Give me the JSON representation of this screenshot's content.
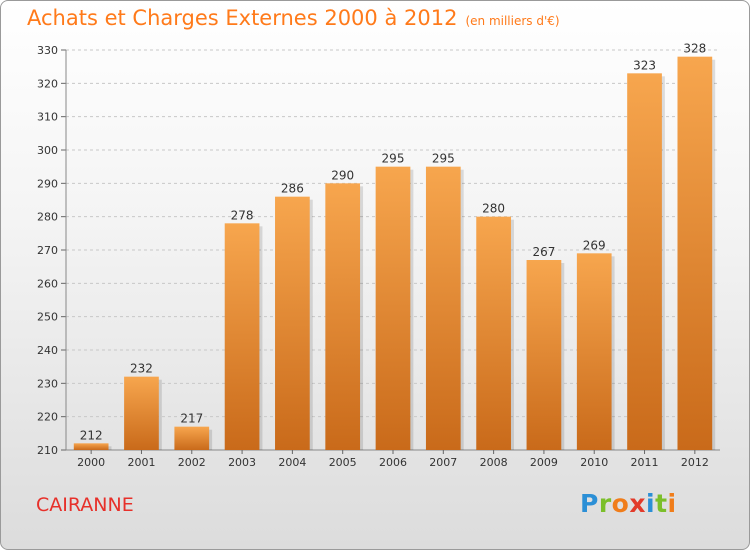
{
  "title": "Achats et Charges Externes 2000 à 2012",
  "subtitle": "(en milliers d'€)",
  "city": "CAIRANNE",
  "logo": {
    "letters": [
      {
        "ch": "P",
        "color": "#2b8fd6"
      },
      {
        "ch": "r",
        "color": "#7bbf2a"
      },
      {
        "ch": "o",
        "color": "#f07d1a"
      },
      {
        "ch": "x",
        "color": "#e23a2a"
      },
      {
        "ch": "i",
        "color": "#2b8fd6"
      },
      {
        "ch": "t",
        "color": "#7bbf2a"
      },
      {
        "ch": "i",
        "color": "#f07d1a"
      }
    ]
  },
  "colors": {
    "accent": "#ff7a1a",
    "bar_light": "#f7a64e",
    "bar_dark": "#c96a1a",
    "city": "#e7302a"
  },
  "chart_data": {
    "type": "bar",
    "title": "Achats et Charges Externes 2000 à 2012",
    "subtitle": "(en milliers d'€)",
    "categories": [
      "2000",
      "2001",
      "2002",
      "2003",
      "2004",
      "2005",
      "2006",
      "2007",
      "2008",
      "2009",
      "2010",
      "2011",
      "2012"
    ],
    "values": [
      212,
      232,
      217,
      278,
      286,
      290,
      295,
      295,
      280,
      267,
      269,
      323,
      328
    ],
    "ylim": [
      210,
      330
    ],
    "yticks": [
      210,
      220,
      230,
      240,
      250,
      260,
      270,
      280,
      290,
      300,
      310,
      320,
      330
    ],
    "grid": true,
    "xlabel": "",
    "ylabel": ""
  }
}
